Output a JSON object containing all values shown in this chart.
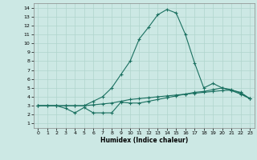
{
  "xlabel": "Humidex (Indice chaleur)",
  "bg_color": "#cce8e4",
  "grid_color": "#b0d4cc",
  "line_color": "#1a7060",
  "xlim": [
    -0.5,
    23.5
  ],
  "ylim": [
    0.5,
    14.5
  ],
  "xticks": [
    0,
    1,
    2,
    3,
    4,
    5,
    6,
    7,
    8,
    9,
    10,
    11,
    12,
    13,
    14,
    15,
    16,
    17,
    18,
    19,
    20,
    21,
    22,
    23
  ],
  "yticks": [
    1,
    2,
    3,
    4,
    5,
    6,
    7,
    8,
    9,
    10,
    11,
    12,
    13,
    14
  ],
  "series": [
    {
      "x": [
        0,
        1,
        2,
        3,
        4,
        5,
        6,
        7,
        8,
        9,
        10,
        11,
        12,
        13,
        14,
        15,
        16,
        17,
        18,
        19,
        20,
        21,
        22,
        23
      ],
      "y": [
        3.0,
        3.0,
        3.0,
        3.0,
        3.0,
        3.0,
        3.1,
        3.2,
        3.3,
        3.5,
        3.7,
        3.8,
        3.9,
        4.0,
        4.1,
        4.2,
        4.3,
        4.4,
        4.5,
        4.6,
        4.7,
        4.75,
        4.5,
        3.8
      ]
    },
    {
      "x": [
        0,
        1,
        2,
        3,
        4,
        5,
        6,
        7,
        8,
        9,
        10,
        11,
        12,
        13,
        14,
        15,
        16,
        17,
        18,
        19,
        20,
        21,
        22,
        23
      ],
      "y": [
        3.0,
        3.0,
        3.0,
        2.7,
        2.2,
        2.8,
        2.2,
        2.2,
        2.2,
        3.4,
        3.3,
        3.3,
        3.5,
        3.7,
        3.9,
        4.1,
        4.3,
        4.5,
        4.6,
        4.8,
        5.0,
        4.8,
        4.4,
        3.8
      ]
    },
    {
      "x": [
        0,
        2,
        3,
        4,
        5,
        6,
        7,
        8,
        9,
        10,
        11,
        12,
        13,
        14,
        15,
        16,
        17,
        18,
        19,
        20,
        21,
        22,
        23
      ],
      "y": [
        3.0,
        3.0,
        3.0,
        3.0,
        3.0,
        3.5,
        4.0,
        5.0,
        6.5,
        8.0,
        10.5,
        11.8,
        13.2,
        13.8,
        13.4,
        11.0,
        7.8,
        5.0,
        5.5,
        5.0,
        4.7,
        4.3,
        3.8
      ]
    }
  ]
}
